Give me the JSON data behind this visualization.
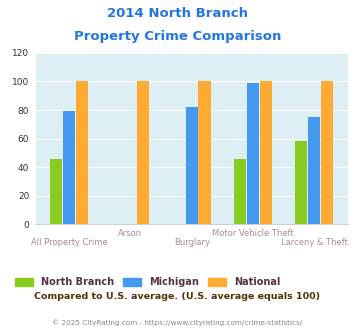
{
  "title_line1": "2014 North Branch",
  "title_line2": "Property Crime Comparison",
  "categories": [
    "All Property Crime",
    "Arson",
    "Burglary",
    "Motor Vehicle Theft",
    "Larceny & Theft"
  ],
  "north_branch": [
    46,
    0,
    0,
    46,
    58
  ],
  "michigan": [
    79,
    0,
    82,
    99,
    75
  ],
  "national": [
    100,
    100,
    100,
    100,
    100
  ],
  "nb_color": "#88cc22",
  "mi_color": "#4499ee",
  "nat_color": "#ffaa33",
  "title_color": "#2277dd",
  "xlabel_color": "#aa8899",
  "legend_text_color": "#553344",
  "plot_bg": "#ddeef5",
  "ylim": [
    0,
    120
  ],
  "yticks": [
    0,
    20,
    40,
    60,
    80,
    100,
    120
  ],
  "footer_text": "Compared to U.S. average. (U.S. average equals 100)",
  "copyright_text": "© 2025 CityRating.com - https://www.cityrating.com/crime-statistics/",
  "legend_labels": [
    "North Branch",
    "Michigan",
    "National"
  ],
  "grid_color": "#ffffff",
  "bar_width": 0.2
}
